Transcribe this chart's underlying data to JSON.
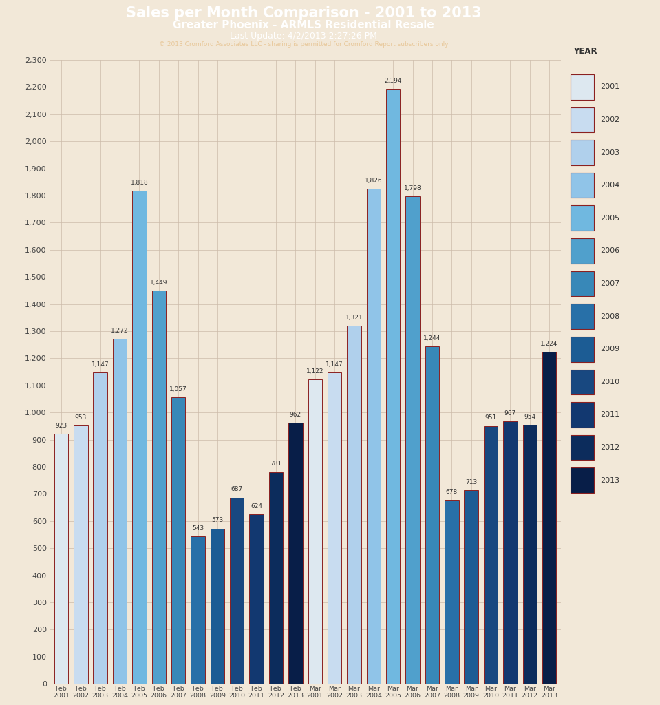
{
  "title_line1": "Sales per Month Comparison - 2001 to 2013",
  "title_line2": "Greater Phoenix - ARMLS Residential Resale",
  "title_line3": "Last Update: 4/2/2013 2:27:26 PM",
  "title_line4": "© 2013 Cromford Associates LLC - sharing is permitted for Cromford Report subscribers only",
  "title_bg": "#8B0000",
  "title_fg": "#FFFFFF",
  "title_line4_fg": "#E8C89A",
  "background_color": "#F2E8D8",
  "bar_edge_color": "#8B2020",
  "categories": [
    "Feb\n2001",
    "Feb\n2002",
    "Feb\n2003",
    "Feb\n2004",
    "Feb\n2005",
    "Feb\n2006",
    "Feb\n2007",
    "Feb\n2008",
    "Feb\n2009",
    "Feb\n2010",
    "Feb\n2011",
    "Feb\n2012",
    "Feb\n2013",
    "Mar\n2001",
    "Mar\n2002",
    "Mar\n2003",
    "Mar\n2004",
    "Mar\n2005",
    "Mar\n2006",
    "Mar\n2007",
    "Mar\n2008",
    "Mar\n2009",
    "Mar\n2010",
    "Mar\n2011",
    "Mar\n2012",
    "Mar\n2013"
  ],
  "values": [
    923,
    953,
    1147,
    1272,
    1818,
    1449,
    1057,
    543,
    573,
    687,
    624,
    781,
    962,
    1122,
    1147,
    1321,
    1826,
    2194,
    1798,
    1244,
    678,
    713,
    951,
    967,
    954,
    1224
  ],
  "years": [
    2001,
    2002,
    2003,
    2004,
    2005,
    2006,
    2007,
    2008,
    2009,
    2010,
    2011,
    2012,
    2013,
    2001,
    2002,
    2003,
    2004,
    2005,
    2006,
    2007,
    2008,
    2009,
    2010,
    2011,
    2012,
    2013
  ],
  "year_colors": {
    "2001": "#DDE8F0",
    "2002": "#C8DCF0",
    "2003": "#B0D0EC",
    "2004": "#90C4E8",
    "2005": "#70B8E0",
    "2006": "#50A0CC",
    "2007": "#3888B8",
    "2008": "#2870A8",
    "2009": "#1C5C94",
    "2010": "#184880",
    "2011": "#123870",
    "2012": "#0C2C5C",
    "2013": "#081E48"
  },
  "legend_years": [
    "2001",
    "2002",
    "2003",
    "2004",
    "2005",
    "2006",
    "2007",
    "2008",
    "2009",
    "2010",
    "2011",
    "2012",
    "2013"
  ],
  "ylim": [
    0,
    2300
  ],
  "yticks": [
    0,
    100,
    200,
    300,
    400,
    500,
    600,
    700,
    800,
    900,
    1000,
    1100,
    1200,
    1300,
    1400,
    1500,
    1600,
    1700,
    1800,
    1900,
    2000,
    2100,
    2200,
    2300
  ]
}
